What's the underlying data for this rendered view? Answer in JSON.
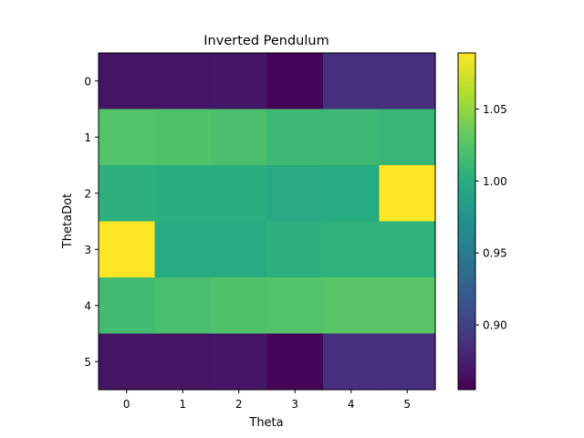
{
  "chart_data": {
    "type": "heatmap",
    "title": "Inverted Pendulum",
    "xlabel": "Theta",
    "ylabel": "ThetaDot",
    "x_categories": [
      "0",
      "1",
      "2",
      "3",
      "4",
      "5"
    ],
    "y_categories": [
      "0",
      "1",
      "2",
      "3",
      "4",
      "5"
    ],
    "values": [
      [
        0.868,
        0.868,
        0.869,
        0.857,
        0.886,
        0.886
      ],
      [
        1.024,
        1.023,
        1.02,
        1.013,
        1.013,
        1.01
      ],
      [
        1.003,
        1.002,
        1.002,
        0.997,
        0.998,
        1.089
      ],
      [
        1.089,
        0.998,
        0.999,
        1.003,
        1.004,
        1.004
      ],
      [
        1.016,
        1.019,
        1.022,
        1.024,
        1.027,
        1.027
      ],
      [
        0.868,
        0.868,
        0.869,
        0.857,
        0.886,
        0.886
      ]
    ],
    "colormap": "viridis",
    "vmin": 0.855,
    "vmax": 1.089,
    "colorbar_ticks": [
      "0.90",
      "0.95",
      "1.00",
      "1.05"
    ],
    "grid": false
  }
}
